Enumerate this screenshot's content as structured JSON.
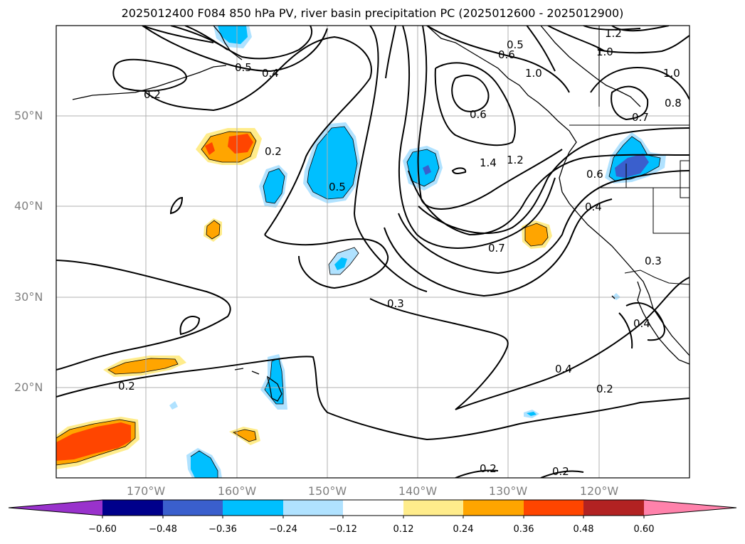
{
  "title": "2025012400 F084 850 hPa PV, river basin precipitation PC (2025012600 - 2025012900)",
  "map": {
    "lat_labels": [
      "50°N",
      "40°N",
      "30°N",
      "20°N"
    ],
    "lon_labels": [
      "170°W",
      "160°W",
      "150°W",
      "140°W",
      "130°W",
      "120°W"
    ],
    "contour_labels": [
      "1.2",
      "1.0",
      "0.5",
      "0.6",
      "1.0",
      "0.8",
      "1.0",
      "0.4",
      "0.5",
      "0.2",
      "0.2",
      "0.6",
      "0.7",
      "1.4",
      "1.2",
      "0.6",
      "0.5",
      "0.4",
      "0.7",
      "0.3",
      "0.3",
      "0.4",
      "0.4",
      "0.2",
      "0.2",
      "0.2",
      "0.2"
    ],
    "colors": {
      "land_line": "#000000",
      "grid": "#b0b0b0",
      "contour": "#000000"
    }
  },
  "colorbar": {
    "ticks": [
      "−0.60",
      "−0.48",
      "−0.36",
      "−0.24",
      "−0.12",
      "0.12",
      "0.24",
      "0.36",
      "0.48",
      "0.60"
    ],
    "colors": [
      "#9932cc",
      "#00008b",
      "#3a5fcd",
      "#00bfff",
      "#b0e2ff",
      "#ffffff",
      "#ffec8b",
      "#ffa500",
      "#ff4500",
      "#b22222",
      "#ff82ab"
    ]
  }
}
